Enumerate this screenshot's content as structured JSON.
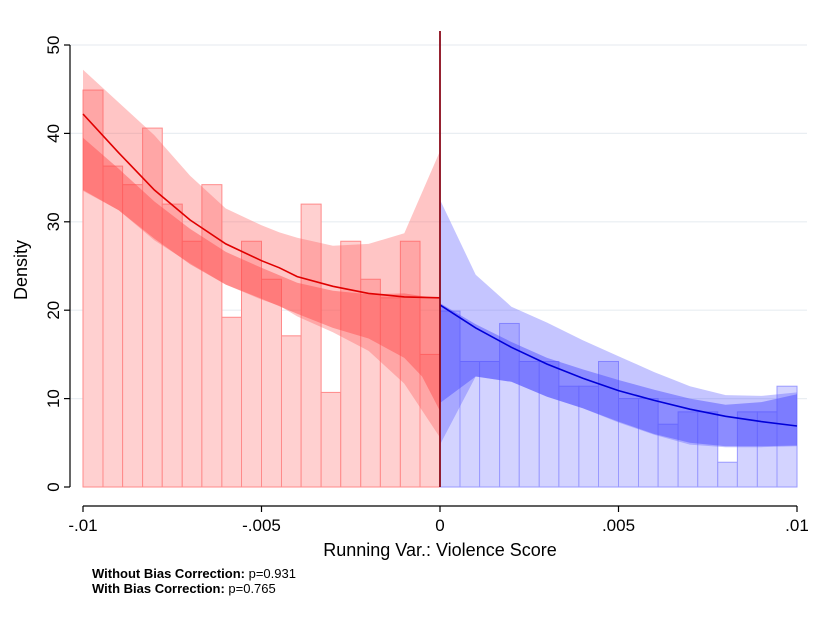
{
  "chart_data": {
    "type": "bar",
    "xlabel": "Running Var.: Violence Score",
    "ylabel": "Density",
    "xlim": [
      -0.01,
      0.01
    ],
    "ylim": [
      0,
      50
    ],
    "xticks": [
      -0.01,
      -0.005,
      0,
      0.005,
      0.01
    ],
    "xtick_labels": [
      "-.01",
      "-.005",
      "0",
      ".005",
      ".01"
    ],
    "yticks": [
      0,
      10,
      20,
      30,
      40,
      50
    ],
    "ytick_labels": [
      "0",
      "10",
      "20",
      "30",
      "40",
      "50"
    ],
    "grid": true,
    "cutoff": 0,
    "colors": {
      "left_fill": "#ffd0d0",
      "left_edge": "#ff8a8a",
      "left_line": "#e00000",
      "left_band_outer": "rgba(255,90,90,0.35)",
      "left_band_inner": "rgba(255,70,70,0.45)",
      "right_fill": "#d3d3ff",
      "right_edge": "#9a9aff",
      "right_line": "#0000d8",
      "right_band_outer": "rgba(90,90,255,0.35)",
      "right_band_inner": "rgba(70,70,255,0.45)",
      "cutoff_line": "#8b0a1a",
      "grid": "#e9eef2"
    },
    "series": [
      {
        "side": "left",
        "bins": [
          {
            "x0": -0.01,
            "x1": -0.00944,
            "value": 44.9
          },
          {
            "x0": -0.00944,
            "x1": -0.00889,
            "value": 36.3
          },
          {
            "x0": -0.00889,
            "x1": -0.00833,
            "value": 34.2
          },
          {
            "x0": -0.00833,
            "x1": -0.00778,
            "value": 40.6
          },
          {
            "x0": -0.00778,
            "x1": -0.00722,
            "value": 32.0
          },
          {
            "x0": -0.00722,
            "x1": -0.00667,
            "value": 27.8
          },
          {
            "x0": -0.00667,
            "x1": -0.00611,
            "value": 34.2
          },
          {
            "x0": -0.00611,
            "x1": -0.00556,
            "value": 19.2
          },
          {
            "x0": -0.00556,
            "x1": -0.005,
            "value": 27.8
          },
          {
            "x0": -0.005,
            "x1": -0.00444,
            "value": 23.5
          },
          {
            "x0": -0.00444,
            "x1": -0.00389,
            "value": 17.1
          },
          {
            "x0": -0.00389,
            "x1": -0.00333,
            "value": 32.0
          },
          {
            "x0": -0.00333,
            "x1": -0.00278,
            "value": 10.7
          },
          {
            "x0": -0.00278,
            "x1": -0.00222,
            "value": 27.8
          },
          {
            "x0": -0.00222,
            "x1": -0.00167,
            "value": 23.5
          },
          {
            "x0": -0.00167,
            "x1": -0.00111,
            "value": 21.4
          },
          {
            "x0": -0.00111,
            "x1": -0.00056,
            "value": 27.8
          },
          {
            "x0": -0.00056,
            "x1": 0,
            "value": 15.0
          }
        ],
        "fit": {
          "x": [
            -0.01,
            -0.009,
            -0.008,
            -0.007,
            -0.006,
            -0.005,
            -0.0045,
            -0.004,
            -0.003,
            -0.002,
            -0.001,
            0
          ],
          "y": [
            42.2,
            37.8,
            33.6,
            30.2,
            27.5,
            25.6,
            24.8,
            23.8,
            22.7,
            21.9,
            21.5,
            21.4
          ]
        },
        "band_outer": {
          "x": [
            -0.01,
            -0.009,
            -0.008,
            -0.007,
            -0.006,
            -0.005,
            -0.0045,
            -0.004,
            -0.003,
            -0.002,
            -0.001,
            0
          ],
          "upper": [
            47.2,
            43.5,
            39.8,
            35.2,
            31.5,
            29.6,
            28.8,
            28.2,
            27.3,
            27.5,
            28.7,
            38.0
          ],
          "lower": [
            33.5,
            31.3,
            27.9,
            25.3,
            22.9,
            21.2,
            20.5,
            19.3,
            17.5,
            15.4,
            11.7,
            5.6
          ]
        },
        "band_inner": {
          "x": [
            -0.01,
            -0.009,
            -0.008,
            -0.007,
            -0.006,
            -0.005,
            -0.004,
            -0.003,
            -0.002,
            -0.001,
            -0.0005,
            0
          ],
          "upper": [
            39.5,
            36.0,
            32.3,
            29.2,
            26.6,
            24.8,
            23.1,
            22.2,
            21.8,
            21.9,
            21.6,
            21.4
          ],
          "lower": [
            33.6,
            31.3,
            28.1,
            25.2,
            22.9,
            21.3,
            19.6,
            18.0,
            16.8,
            14.6,
            12.5,
            8.6
          ]
        }
      },
      {
        "side": "right",
        "bins": [
          {
            "x0": 0,
            "x1": 0.00056,
            "value": 19.9
          },
          {
            "x0": 0.00056,
            "x1": 0.00111,
            "value": 14.2
          },
          {
            "x0": 0.00111,
            "x1": 0.00167,
            "value": 14.2
          },
          {
            "x0": 0.00167,
            "x1": 0.00222,
            "value": 18.5
          },
          {
            "x0": 0.00222,
            "x1": 0.00278,
            "value": 14.2
          },
          {
            "x0": 0.00278,
            "x1": 0.00333,
            "value": 14.2
          },
          {
            "x0": 0.00333,
            "x1": 0.00389,
            "value": 11.4
          },
          {
            "x0": 0.00389,
            "x1": 0.00444,
            "value": 11.4
          },
          {
            "x0": 0.00444,
            "x1": 0.005,
            "value": 14.2
          },
          {
            "x0": 0.005,
            "x1": 0.00556,
            "value": 10.0
          },
          {
            "x0": 0.00556,
            "x1": 0.00611,
            "value": 10.0
          },
          {
            "x0": 0.00611,
            "x1": 0.00667,
            "value": 7.1
          },
          {
            "x0": 0.00667,
            "x1": 0.00722,
            "value": 8.5
          },
          {
            "x0": 0.00722,
            "x1": 0.00778,
            "value": 8.5
          },
          {
            "x0": 0.00778,
            "x1": 0.00833,
            "value": 2.8
          },
          {
            "x0": 0.00833,
            "x1": 0.00889,
            "value": 8.5
          },
          {
            "x0": 0.00889,
            "x1": 0.00944,
            "value": 8.5
          },
          {
            "x0": 0.00944,
            "x1": 0.01,
            "value": 11.4
          }
        ],
        "fit": {
          "x": [
            0,
            0.001,
            0.002,
            0.003,
            0.004,
            0.005,
            0.006,
            0.007,
            0.008,
            0.009,
            0.01
          ],
          "y": [
            20.6,
            18.0,
            15.8,
            13.9,
            12.3,
            10.9,
            9.8,
            8.8,
            8.0,
            7.4,
            6.9
          ]
        },
        "band_outer": {
          "x": [
            0,
            0.001,
            0.002,
            0.003,
            0.004,
            0.005,
            0.006,
            0.007,
            0.008,
            0.009,
            0.01
          ],
          "upper": [
            32.5,
            24.0,
            20.4,
            18.6,
            16.6,
            14.8,
            13.0,
            11.4,
            10.4,
            10.3,
            10.7
          ],
          "lower": [
            4.8,
            12.5,
            11.9,
            10.2,
            8.9,
            7.3,
            5.9,
            4.8,
            4.5,
            4.5,
            4.6
          ]
        },
        "band_inner": {
          "x": [
            0,
            0.001,
            0.002,
            0.003,
            0.004,
            0.005,
            0.006,
            0.007,
            0.008,
            0.009,
            0.01
          ],
          "upper": [
            20.8,
            18.4,
            16.4,
            14.6,
            13.3,
            12.1,
            11.0,
            10.0,
            9.3,
            9.6,
            10.5
          ],
          "lower": [
            9.5,
            12.5,
            11.9,
            10.2,
            8.9,
            7.4,
            6.0,
            5.0,
            4.6,
            4.6,
            4.7
          ]
        }
      }
    ]
  },
  "notes": {
    "bias_off_label": "Without Bias Correction:",
    "bias_off_value": " p=0.931",
    "bias_on_label": "With Bias Correction:",
    "bias_on_value": " p=0.765"
  }
}
